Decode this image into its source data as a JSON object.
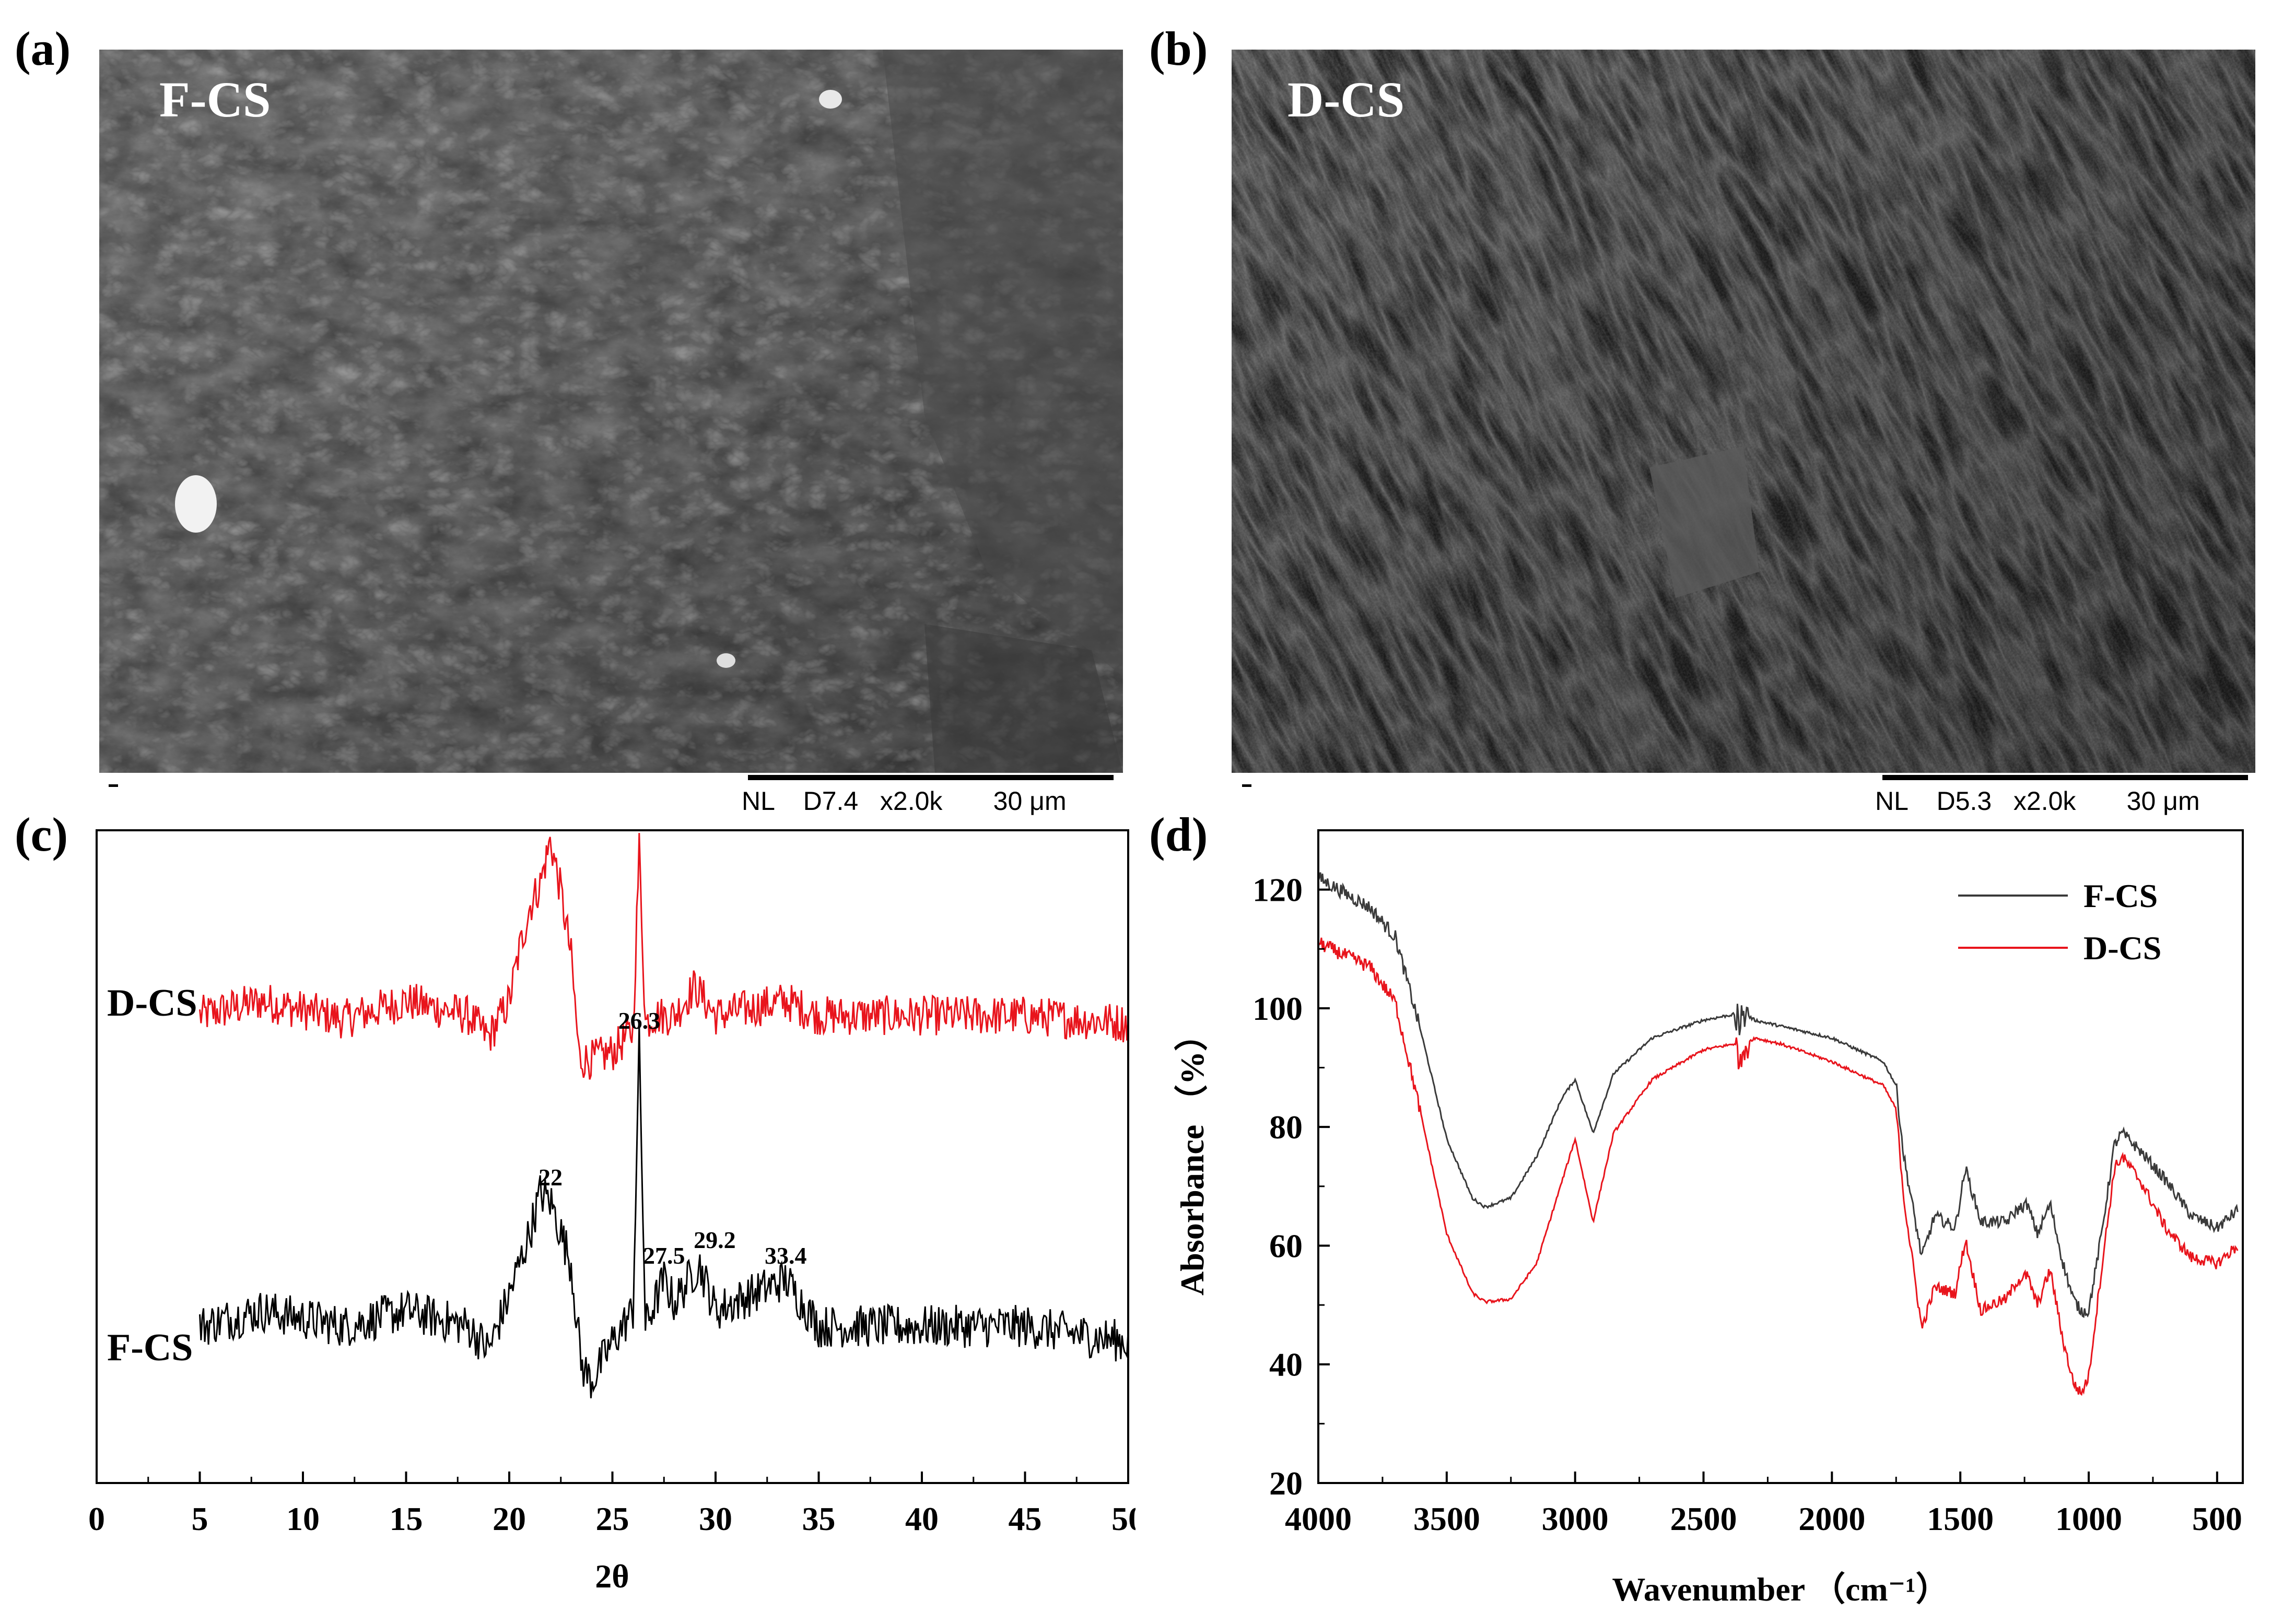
{
  "panels": {
    "a": {
      "letter": "(a)",
      "label": "F-CS",
      "scale_text": "NL    D7.4   x2.0k       30 μm"
    },
    "b": {
      "letter": "(b)",
      "label": "D-CS",
      "scale_text": "NL    D5.3   x2.0k       30 μm"
    },
    "c": {
      "letter": "(c)"
    },
    "d": {
      "letter": "(d)"
    }
  },
  "colors": {
    "black": "#000000",
    "red": "#e8141c",
    "grey_curve": "#3a3a3a"
  },
  "chart_data": [
    {
      "panel": "c",
      "type": "line",
      "title": "",
      "xlabel": "2θ",
      "ylabel": "",
      "xlim": [
        0,
        50
      ],
      "xticks": [
        0,
        5,
        10,
        15,
        20,
        25,
        30,
        35,
        40,
        45,
        50
      ],
      "y_ticks_shown": false,
      "grid": false,
      "series": [
        {
          "name": "D-CS",
          "color": "#e8141c",
          "x": [
            5,
            8,
            12,
            15,
            18,
            19,
            20,
            20.5,
            21,
            21.5,
            22,
            22.5,
            23,
            23.4,
            24,
            25,
            26,
            26.3,
            26.6,
            27,
            28,
            29,
            30,
            33.4,
            35,
            40,
            45,
            50
          ],
          "y": [
            1.0,
            1.2,
            0.95,
            1.2,
            1.0,
            0.7,
            1.2,
            1.9,
            2.5,
            2.8,
            3.4,
            2.7,
            1.8,
            0.4,
            0.4,
            0.5,
            0.8,
            3.3,
            0.9,
            1.0,
            1.0,
            1.4,
            1.0,
            1.2,
            1.0,
            1.0,
            1.0,
            0.9
          ]
        },
        {
          "name": "F-CS",
          "color": "#000000",
          "x": [
            5,
            8,
            12,
            15,
            18,
            19,
            20,
            21,
            21.5,
            22,
            22.5,
            23,
            23.5,
            24,
            25,
            26,
            26.3,
            26.6,
            27.5,
            28,
            29.2,
            30,
            33.4,
            35,
            40,
            45,
            50
          ],
          "y": [
            1.0,
            1.2,
            1.0,
            1.2,
            1.0,
            0.7,
            1.4,
            2.2,
            2.7,
            2.6,
            2.2,
            1.8,
            0.5,
            0.3,
            0.8,
            1.2,
            4.6,
            1.0,
            1.6,
            1.3,
            1.8,
            1.2,
            1.6,
            1.0,
            1.0,
            1.0,
            0.8
          ]
        }
      ],
      "annotations": [
        {
          "text": "26.3",
          "x": 26.3,
          "series": "F-CS"
        },
        {
          "text": "22",
          "x": 22,
          "series": "F-CS"
        },
        {
          "text": "27.5",
          "x": 27.5,
          "series": "F-CS"
        },
        {
          "text": "29.2",
          "x": 29.2,
          "series": "F-CS"
        },
        {
          "text": "33.4",
          "x": 33.4,
          "series": "F-CS"
        }
      ]
    },
    {
      "panel": "d",
      "type": "line",
      "title": "",
      "xlabel": "Wavenumber （cm⁻¹）",
      "ylabel": "Absorbance （%）",
      "xlim": [
        4000,
        400
      ],
      "x_reversed": true,
      "xticks": [
        4000,
        3500,
        3000,
        2500,
        2000,
        1500,
        1000,
        500
      ],
      "ylim": [
        20,
        130
      ],
      "yticks": [
        20,
        40,
        60,
        80,
        100,
        120
      ],
      "grid": false,
      "legend": "top-right",
      "series": [
        {
          "name": "F-CS",
          "color": "#3a3a3a",
          "x": [
            4000,
            3800,
            3700,
            3600,
            3500,
            3400,
            3350,
            3250,
            3150,
            3050,
            3000,
            2930,
            2850,
            2700,
            2500,
            2380,
            2360,
            2340,
            2300,
            2200,
            2000,
            1800,
            1750,
            1720,
            1650,
            1600,
            1520,
            1480,
            1420,
            1380,
            1320,
            1280,
            1240,
            1200,
            1150,
            1100,
            1060,
            1030,
            1000,
            950,
            900,
            870,
            800,
            700,
            600,
            500,
            420
          ],
          "y": [
            122,
            117,
            112,
            96,
            78,
            68,
            66.5,
            68,
            75,
            85,
            88,
            79,
            89,
            95,
            98,
            99,
            97,
            99,
            98,
            97,
            95,
            91,
            87,
            75,
            58,
            65,
            63,
            73,
            64,
            64,
            64,
            66,
            67,
            62,
            67,
            57,
            51,
            49,
            49,
            62,
            77,
            79,
            76,
            71,
            65,
            63,
            66
          ]
        },
        {
          "name": "D-CS",
          "color": "#e8141c",
          "x": [
            4000,
            3800,
            3700,
            3600,
            3500,
            3400,
            3350,
            3250,
            3150,
            3050,
            3000,
            2930,
            2850,
            2700,
            2500,
            2380,
            2360,
            2340,
            2300,
            2200,
            2000,
            1800,
            1750,
            1720,
            1650,
            1600,
            1520,
            1480,
            1420,
            1380,
            1320,
            1280,
            1240,
            1200,
            1150,
            1100,
            1060,
            1030,
            1000,
            950,
            900,
            870,
            800,
            700,
            600,
            500,
            420
          ],
          "y": [
            111,
            107,
            101,
            82,
            62,
            52,
            50.5,
            51,
            57,
            71,
            78,
            64,
            79,
            88,
            93,
            94,
            92,
            94,
            95,
            94,
            91,
            87,
            83,
            68,
            46,
            53,
            52,
            61,
            49,
            50,
            51,
            54,
            55,
            50,
            56,
            44,
            37,
            35,
            38,
            56,
            73,
            75,
            71,
            63,
            58,
            57,
            60
          ]
        }
      ]
    }
  ]
}
